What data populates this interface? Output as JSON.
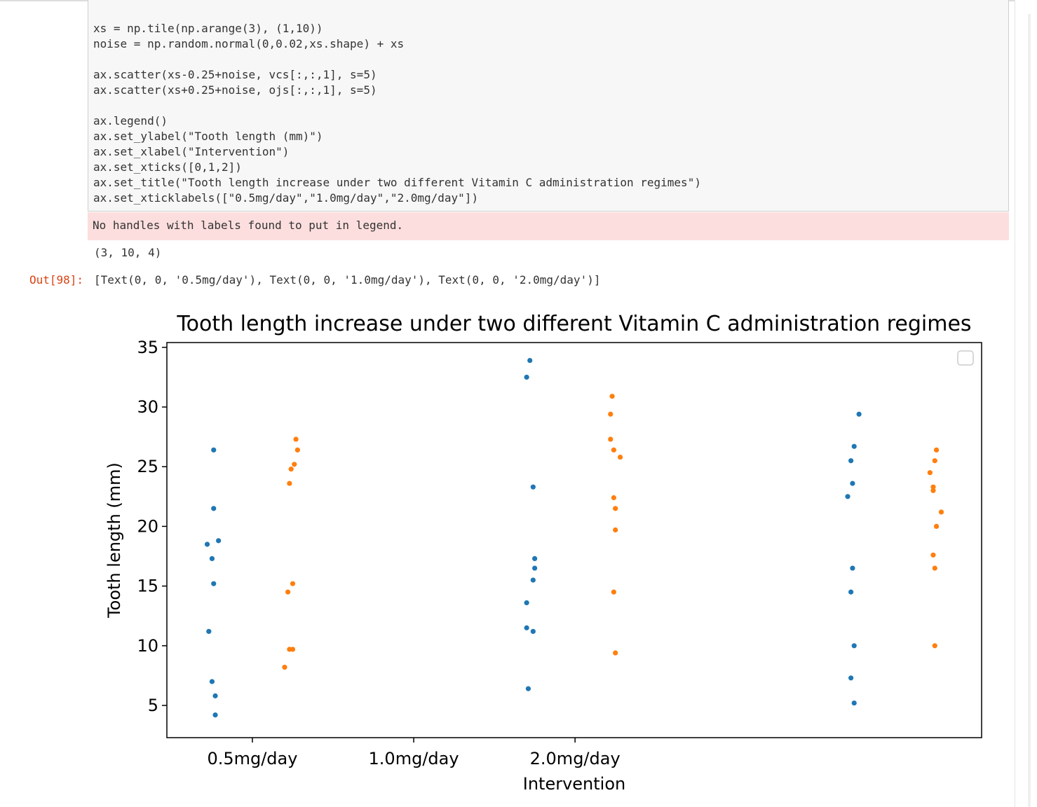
{
  "code_lines": [
    "xs = np.tile(np.arange(3), (1,10))",
    "noise = np.random.normal(0,0.02,xs.shape) + xs",
    "",
    "ax.scatter(xs-0.25+noise, vcs[:,:,1], s=5)",
    "ax.scatter(xs+0.25+noise, ojs[:,:,1], s=5)",
    "",
    "ax.legend()",
    "ax.set_ylabel(\"Tooth length (mm)\")",
    "ax.set_xlabel(\"Intervention\")",
    "ax.set_xticks([0,1,2])",
    "ax.set_title(\"Tooth length increase under two different Vitamin C administration regimes\")",
    "ax.set_xticklabels([\"0.5mg/day\",\"1.0mg/day\",\"2.0mg/day\"])"
  ],
  "stderr_text": "No handles with labels found to put in legend.",
  "stdout_text": "(3, 10, 4)",
  "out_prompt": "Out[98]:",
  "out_text": "[Text(0, 0, '0.5mg/day'), Text(0, 0, '1.0mg/day'), Text(0, 0, '2.0mg/day')]",
  "colors": {
    "series1": "#1f77b4",
    "series2": "#ff7f0e"
  },
  "chart_data": {
    "type": "scatter",
    "title": "Tooth length increase under two different Vitamin C administration regimes",
    "xlabel": "Intervention",
    "ylabel": "Tooth length (mm)",
    "xticks": [
      0,
      1,
      2
    ],
    "xticklabels": [
      "0.5mg/day",
      "1.0mg/day",
      "2.0mg/day"
    ],
    "yticks": [
      5,
      10,
      15,
      20,
      25,
      30,
      35
    ],
    "xlim": [
      -0.53,
      4.52
    ],
    "ylim": [
      2.3,
      35.4
    ],
    "legend": "top-right (empty)",
    "series": [
      {
        "color": "#1f77b4",
        "x": [
          -0.23,
          -0.23,
          -0.25,
          -0.27,
          -0.24,
          -0.28,
          -0.21,
          -0.25,
          -0.24,
          -0.24,
          1.72,
          1.7,
          1.74,
          1.75,
          1.75,
          1.74,
          1.7,
          1.7,
          1.74,
          1.71,
          3.73,
          3.71,
          3.73,
          3.71,
          3.72,
          3.69,
          3.72,
          3.71,
          3.73,
          3.76
        ],
        "y": [
          4.2,
          5.8,
          7.0,
          11.2,
          15.2,
          18.5,
          18.8,
          17.3,
          21.5,
          26.4,
          33.9,
          32.5,
          23.3,
          17.3,
          16.5,
          15.5,
          13.6,
          11.5,
          11.2,
          6.4,
          5.2,
          7.3,
          10.0,
          14.5,
          16.5,
          22.5,
          23.6,
          25.5,
          26.7,
          29.4
        ],
        "name": ""
      },
      {
        "color": "#ff7f0e",
        "x": [
          0.2,
          0.23,
          0.25,
          0.25,
          0.22,
          0.23,
          0.26,
          0.24,
          0.28,
          0.27,
          2.23,
          2.22,
          2.22,
          2.24,
          2.28,
          2.24,
          2.25,
          2.25,
          2.24,
          2.25,
          4.23,
          4.23,
          4.22,
          4.24,
          4.27,
          4.22,
          4.22,
          4.2,
          4.23,
          4.24
        ],
        "y": [
          8.2,
          9.7,
          9.7,
          15.2,
          14.5,
          23.6,
          25.2,
          24.8,
          26.4,
          27.3,
          30.9,
          29.4,
          27.3,
          26.4,
          25.8,
          22.4,
          21.5,
          19.7,
          14.5,
          9.4,
          10.0,
          16.5,
          17.6,
          20.0,
          21.2,
          23.3,
          23.0,
          24.5,
          25.5,
          26.4
        ],
        "name": ""
      }
    ]
  }
}
